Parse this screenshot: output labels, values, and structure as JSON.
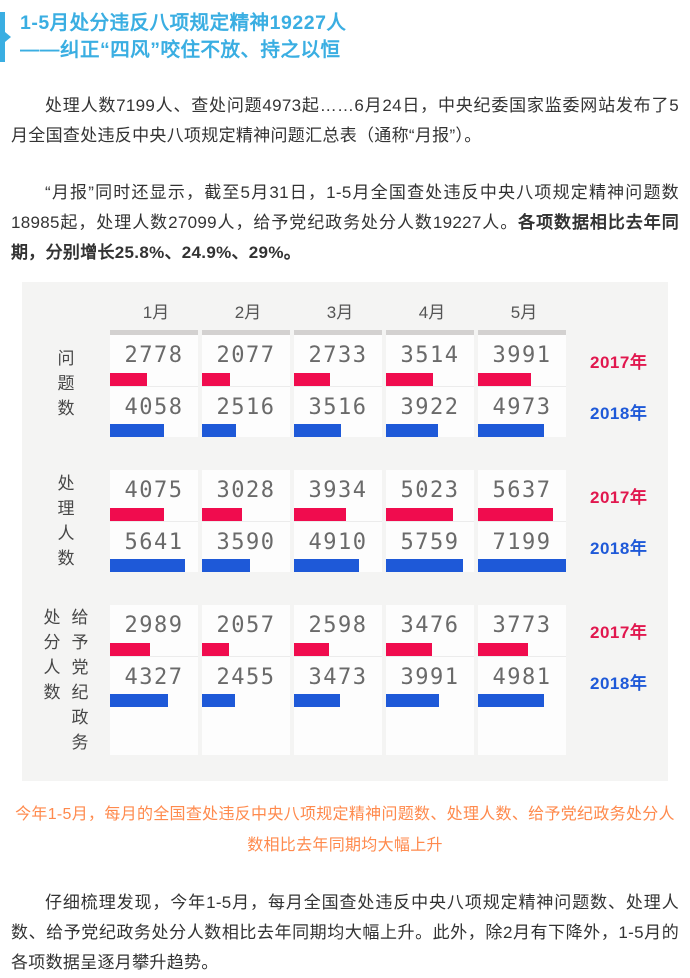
{
  "title": {
    "line1": "1-5月处分违反八项规定精神19227人",
    "line2": "——纠正“四风”咬住不放、持之以恒"
  },
  "paragraphs": {
    "p1": "处理人数7199人、查处问题4973起……6月24日，中央纪委国家监委网站发布了5月全国查处违反中央八项规定精神问题汇总表（通称“月报”）。",
    "p2_normal": "“月报”同时还显示，截至5月31日，1-5月全国查处违反中央八项规定精神问题数18985起，处理人数27099人，给予党纪政务处分人数19227人。",
    "p2_bold": "各项数据相比去年同期，分别增长25.8%、24.9%、29%。",
    "p3": "仔细梳理发现，今年1-5月，每月全国查处违反中央八项规定精神问题数、处理人数、给予党纪政务处分人数相比去年同期均大幅上升。此外，除2月有下降外，1-5月的各项数据呈逐月攀升趋势。"
  },
  "caption": "今年1-5月，每月的全国查处违反中央八项规定精神问题数、处理人数、给予党纪政务处分人数相比去年同期均大幅上升",
  "colors": {
    "title_accent": "#3aaee2",
    "bar_2017": "#f00c4e",
    "bar_2018": "#1e59d8",
    "caption_orange": "#ff8a4d"
  },
  "chart_data": {
    "type": "bar",
    "categories": [
      "1月",
      "2月",
      "3月",
      "4月",
      "5月"
    ],
    "legend": [
      "2017年",
      "2018年"
    ],
    "legend_position": "right",
    "bar_scale_max": 6600,
    "sections": [
      {
        "label": "问题数",
        "label_columns": [
          "问题数"
        ],
        "series": [
          {
            "name": "2017年",
            "color": "#f00c4e",
            "values": [
              2778,
              2077,
              2733,
              3514,
              3991
            ]
          },
          {
            "name": "2018年",
            "color": "#1e59d8",
            "values": [
              4058,
              2516,
              3516,
              3922,
              4973
            ]
          }
        ]
      },
      {
        "label": "处理人数",
        "label_columns": [
          "处理人数"
        ],
        "series": [
          {
            "name": "2017年",
            "color": "#f00c4e",
            "values": [
              4075,
              3028,
              3934,
              5023,
              5637
            ]
          },
          {
            "name": "2018年",
            "color": "#1e59d8",
            "values": [
              5641,
              3590,
              4910,
              5759,
              7199
            ]
          }
        ]
      },
      {
        "label": "给予党纪政务处分人数",
        "label_columns": [
          "处分人数",
          "给予党纪政务"
        ],
        "series": [
          {
            "name": "2017年",
            "color": "#f00c4e",
            "values": [
              2989,
              2057,
              2598,
              3476,
              3773
            ]
          },
          {
            "name": "2018年",
            "color": "#1e59d8",
            "values": [
              4327,
              2455,
              3473,
              3991,
              4981
            ]
          }
        ]
      }
    ]
  }
}
